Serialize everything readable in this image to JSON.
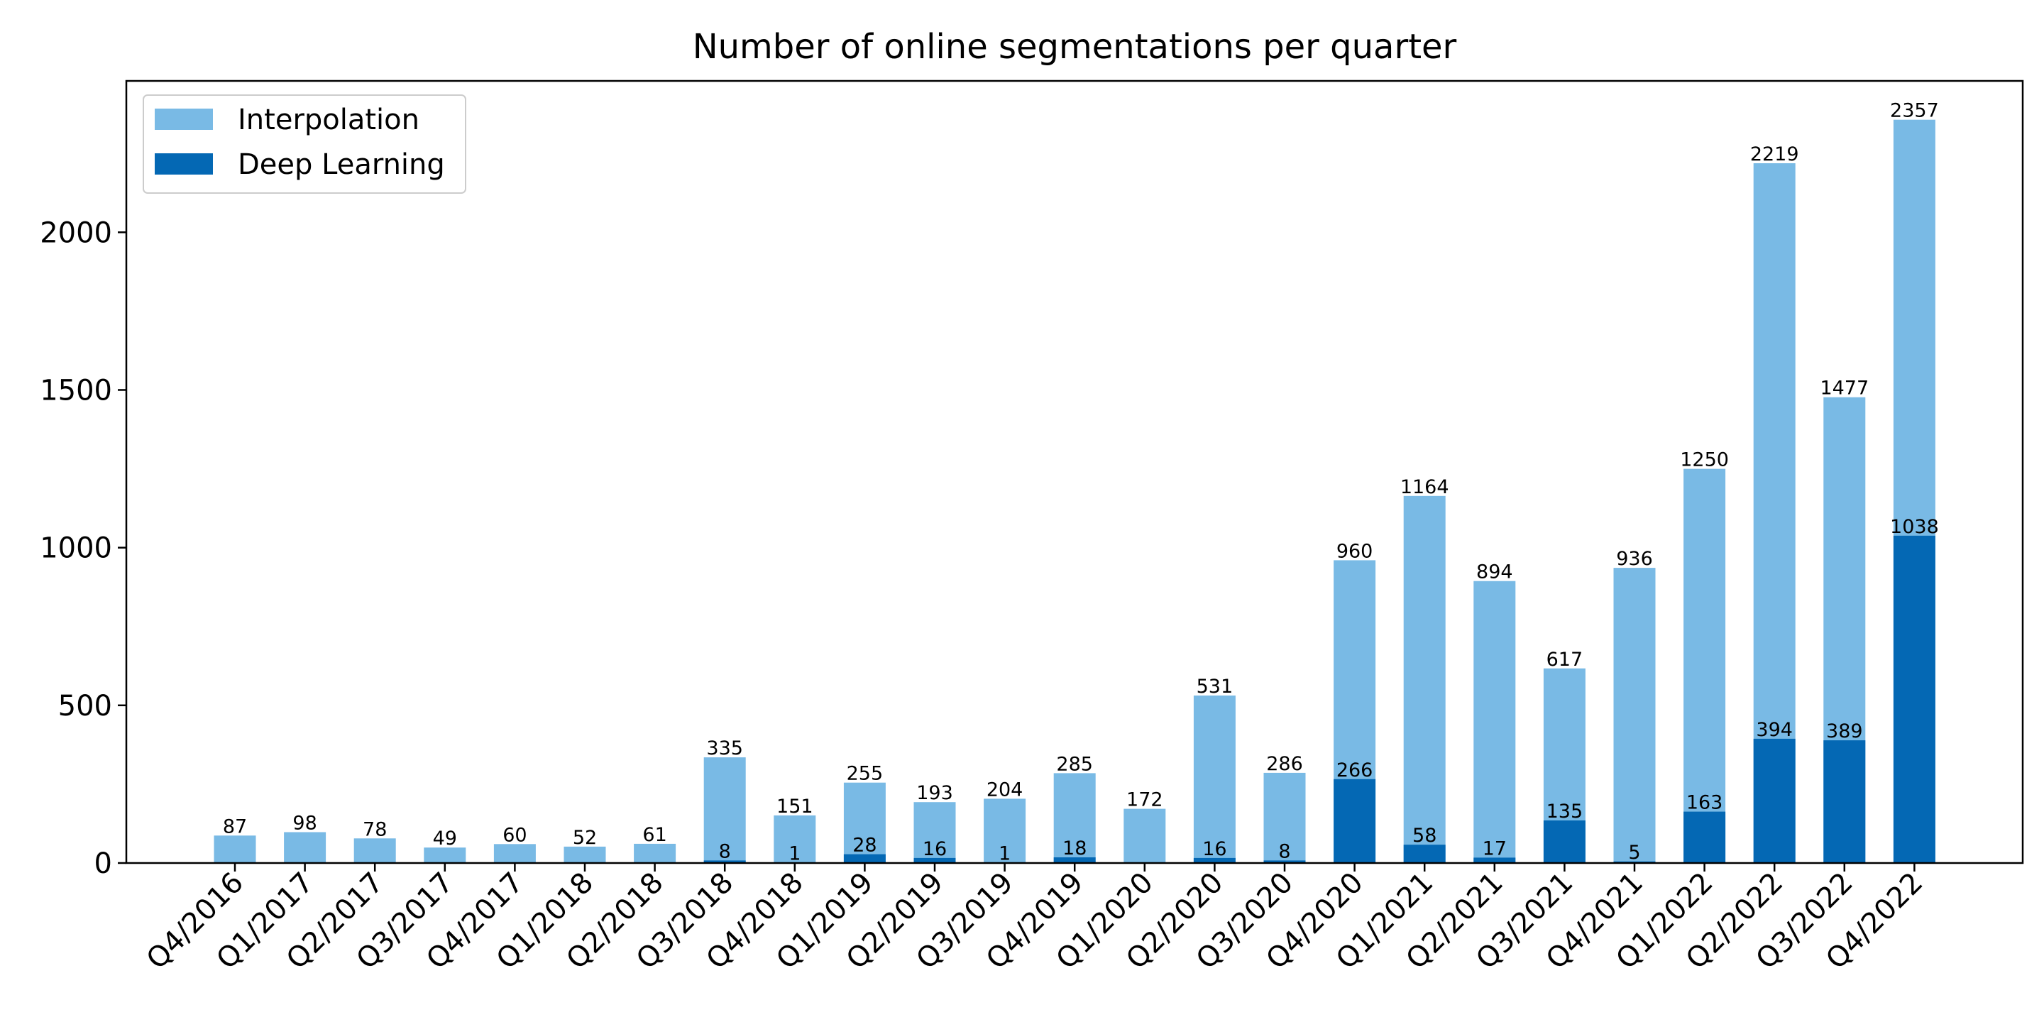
{
  "chart_data": {
    "type": "bar",
    "stacked": "overlay",
    "title": "Number of online segmentations per quarter",
    "xlabel": "",
    "ylabel": "",
    "ylim": [
      0,
      2480
    ],
    "yticks": [
      0,
      500,
      1000,
      1500,
      2000
    ],
    "grid": false,
    "legend_position": "top-left",
    "categories": [
      "Q4/2016",
      "Q1/2017",
      "Q2/2017",
      "Q3/2017",
      "Q4/2017",
      "Q1/2018",
      "Q2/2018",
      "Q3/2018",
      "Q4/2018",
      "Q1/2019",
      "Q2/2019",
      "Q3/2019",
      "Q4/2019",
      "Q1/2020",
      "Q2/2020",
      "Q3/2020",
      "Q4/2020",
      "Q1/2021",
      "Q2/2021",
      "Q3/2021",
      "Q4/2021",
      "Q1/2022",
      "Q2/2022",
      "Q3/2022",
      "Q4/2022"
    ],
    "series": [
      {
        "name": "Interpolation",
        "color": "#79bae5",
        "values": [
          87,
          98,
          78,
          49,
          60,
          52,
          61,
          335,
          151,
          255,
          193,
          204,
          285,
          172,
          531,
          286,
          960,
          1164,
          894,
          617,
          936,
          1250,
          2219,
          1477,
          2357
        ],
        "labels": [
          "87",
          "98",
          "78",
          "49",
          "60",
          "52",
          "61",
          "335",
          "151",
          "255",
          "193",
          "204",
          "285",
          "172",
          "531",
          "286",
          "960",
          "1164",
          "894",
          "617",
          "936",
          "1250",
          "2219",
          "1477",
          "2357"
        ]
      },
      {
        "name": "Deep Learning",
        "color": "#0468b4",
        "values": [
          0,
          0,
          0,
          0,
          0,
          0,
          0,
          8,
          1,
          28,
          16,
          1,
          18,
          0,
          16,
          8,
          266,
          58,
          17,
          135,
          5,
          163,
          394,
          389,
          1038
        ],
        "labels": [
          "",
          "",
          "",
          "",
          "",
          "",
          "",
          "8",
          "1",
          "28",
          "16",
          "1",
          "18",
          "",
          "16",
          "8",
          "266",
          "58",
          "17",
          "135",
          "5",
          "163",
          "394",
          "389",
          "1038"
        ]
      }
    ]
  }
}
